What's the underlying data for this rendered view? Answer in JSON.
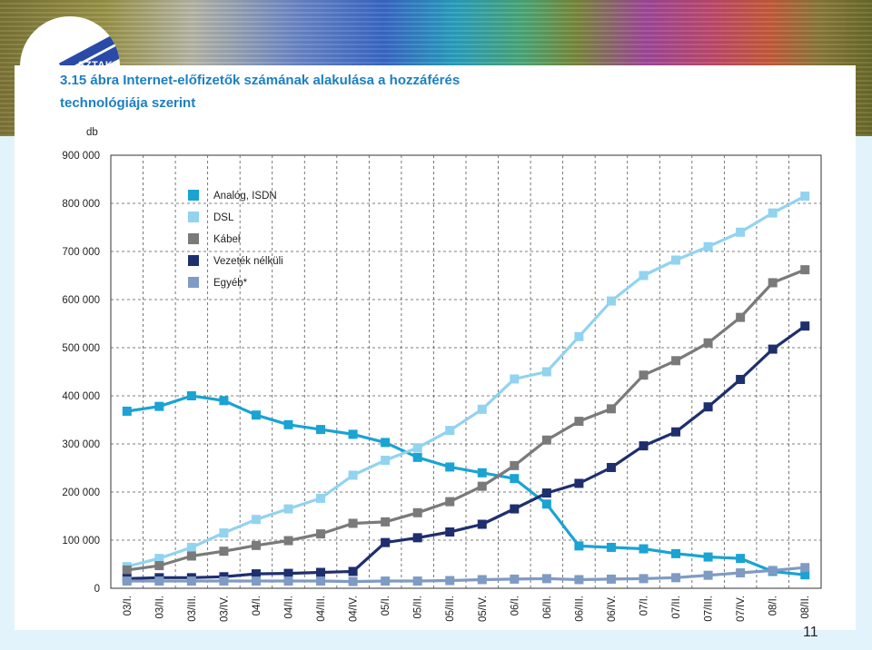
{
  "slide": {
    "title_line1": "3.15 ábra  Internet-előfizetők számának alakulása a hozzáférés",
    "title_line2": "technológiája szerint",
    "logo_text": "SZTAKI",
    "page_number": "11"
  },
  "chart_data": {
    "type": "line",
    "title": "3.15 ábra  Internet-előfizetők számának alakulása a hozzáférés technológiája szerint",
    "ylabel": "db",
    "xlabel": "",
    "ylim": [
      0,
      900000
    ],
    "yticks": [
      0,
      100000,
      200000,
      300000,
      400000,
      500000,
      600000,
      700000,
      800000,
      900000
    ],
    "ytick_labels": [
      "0",
      "100 000",
      "200 000",
      "300 000",
      "400 000",
      "500 000",
      "600 000",
      "700 000",
      "800 000",
      "900 000"
    ],
    "categories": [
      "03/I.",
      "03/II.",
      "03/III.",
      "03/IV.",
      "04/I.",
      "04/II.",
      "04/III.",
      "04/IV.",
      "05/I.",
      "05/II.",
      "05/III.",
      "05/IV.",
      "06/I.",
      "06/II.",
      "06/III.",
      "06/IV.",
      "07/I.",
      "07/II.",
      "07/III.",
      "07/IV.",
      "08/I.",
      "08/II."
    ],
    "grid": true,
    "legend_position": "top-left",
    "series": [
      {
        "name": "Analóg, ISDN",
        "color": "#1aa3d3",
        "values": [
          368000,
          378000,
          400000,
          390000,
          360000,
          340000,
          330000,
          320000,
          303000,
          272000,
          252000,
          240000,
          228000,
          175000,
          88000,
          85000,
          82000,
          72000,
          65000,
          62000,
          35000,
          28000
        ]
      },
      {
        "name": "DSL",
        "color": "#92d3ef",
        "values": [
          45000,
          62000,
          85000,
          115000,
          143000,
          165000,
          187000,
          235000,
          266000,
          292000,
          328000,
          372000,
          435000,
          450000,
          523000,
          597000,
          650000,
          682000,
          710000,
          740000,
          780000,
          815000
        ]
      },
      {
        "name": "Kábel",
        "color": "#7a7a7a",
        "values": [
          38000,
          47000,
          67000,
          77000,
          89000,
          99000,
          113000,
          135000,
          138000,
          157000,
          180000,
          212000,
          255000,
          308000,
          347000,
          373000,
          443000,
          473000,
          510000,
          563000,
          635000,
          662000
        ]
      },
      {
        "name": "Vezeték nélküli",
        "color": "#1e2f6e",
        "values": [
          20000,
          22000,
          22000,
          24000,
          30000,
          31000,
          33000,
          35000,
          95000,
          105000,
          117000,
          133000,
          165000,
          198000,
          218000,
          251000,
          296000,
          325000,
          377000,
          434000,
          497000,
          545000
        ]
      },
      {
        "name": "Egyéb*",
        "color": "#7f9bc4",
        "values": [
          15000,
          15000,
          15000,
          15000,
          15000,
          15000,
          15000,
          14000,
          15000,
          15000,
          16000,
          18000,
          19000,
          20000,
          18000,
          19000,
          20000,
          22000,
          27000,
          32000,
          37000,
          43000
        ]
      }
    ]
  }
}
